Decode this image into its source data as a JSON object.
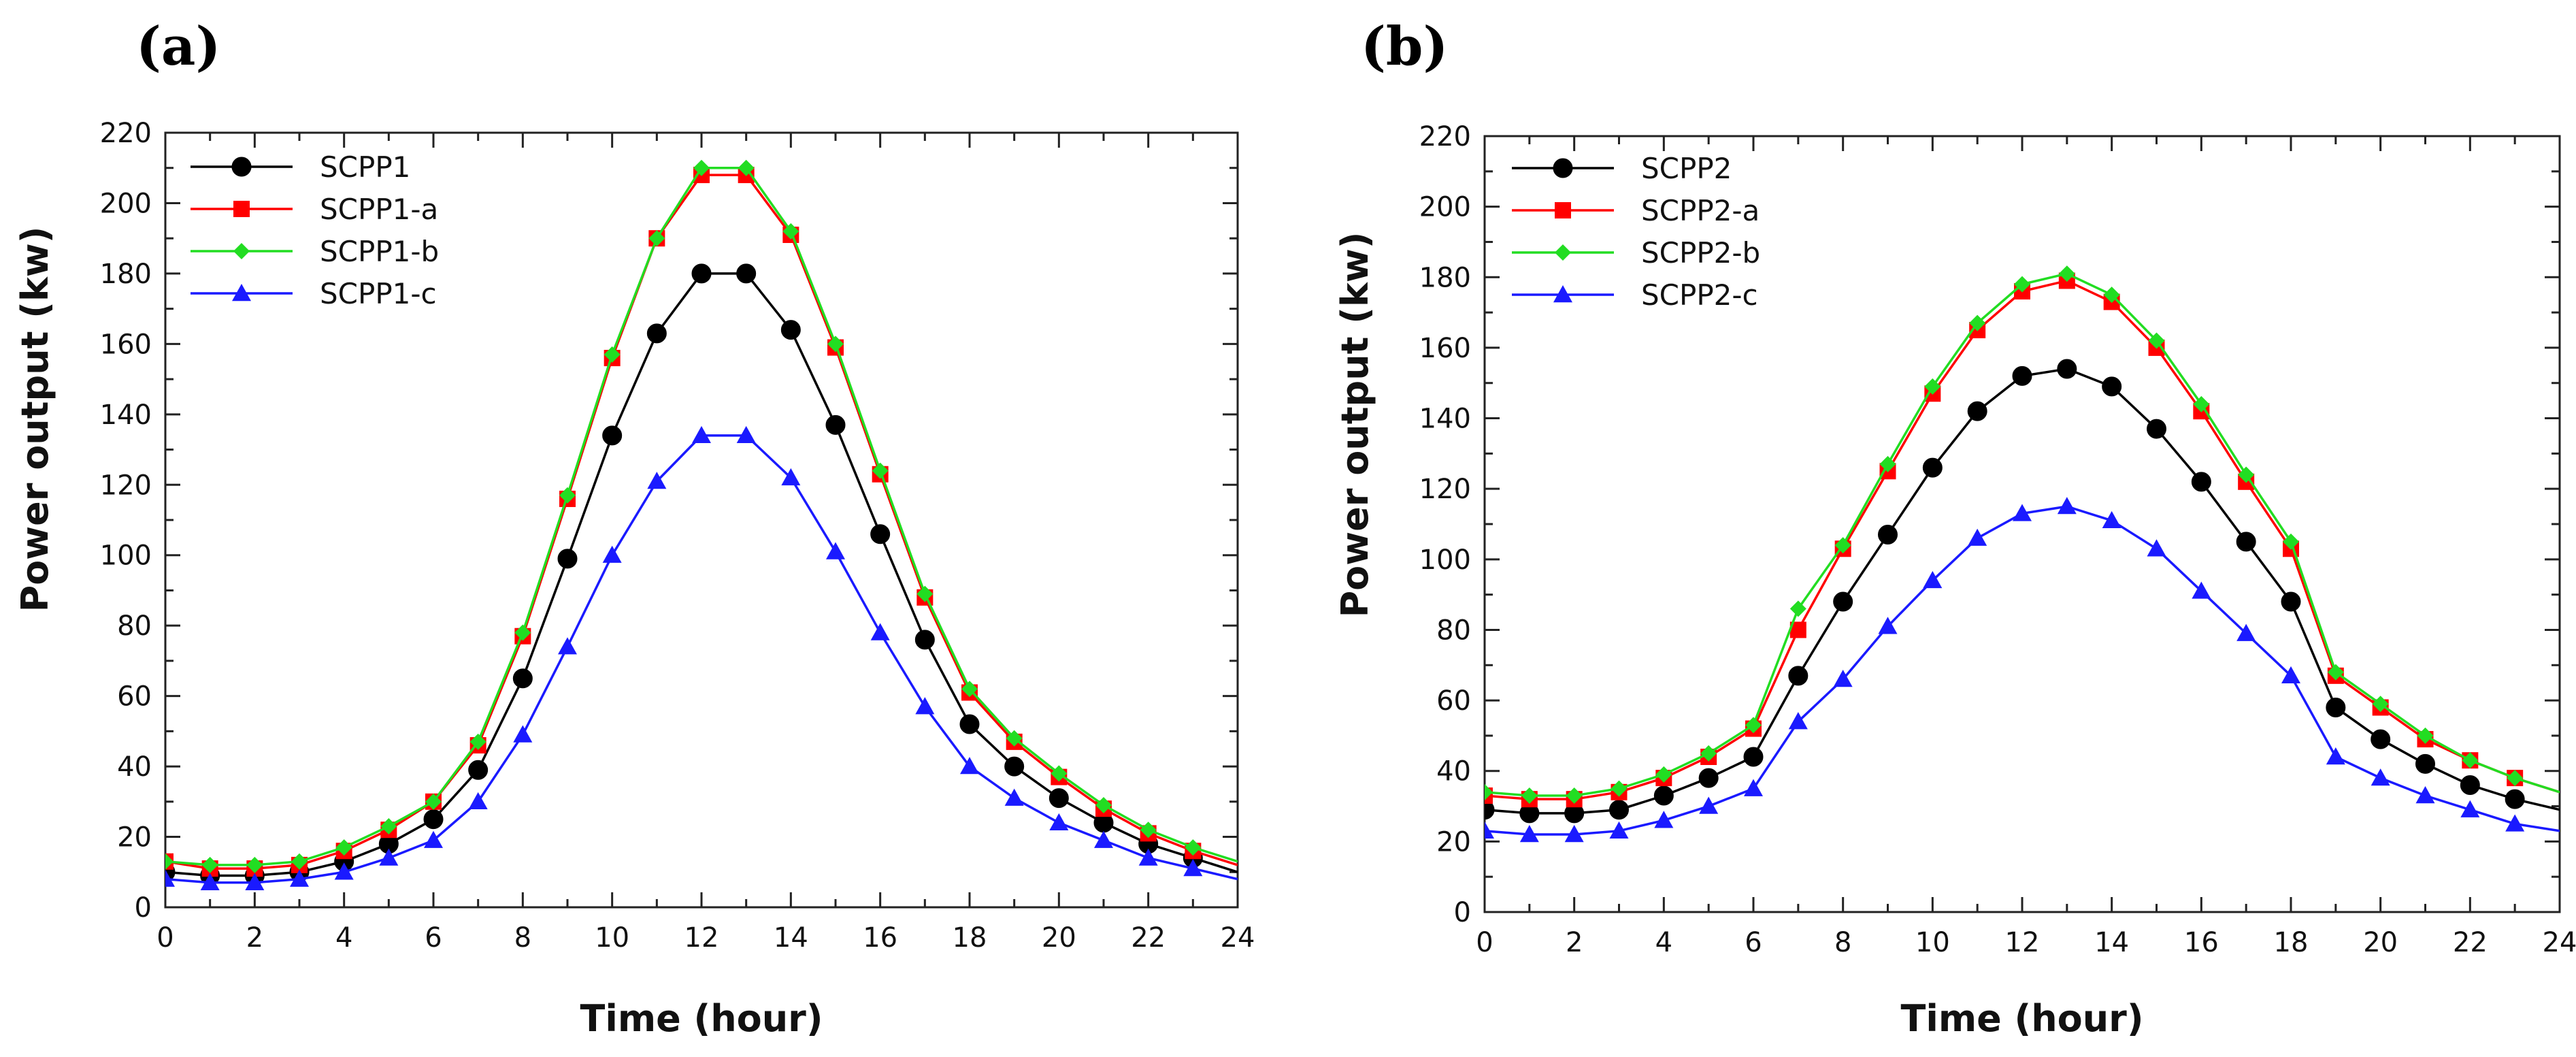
{
  "chart_data": [
    {
      "type": "line",
      "panel_label": "(a)",
      "title": "",
      "xlabel": "Time (hour)",
      "ylabel": "Power output (kw)",
      "xlim": [
        0,
        24
      ],
      "ylim": [
        0,
        220
      ],
      "xticks": [
        "0",
        "2",
        "4",
        "6",
        "8",
        "10",
        "12",
        "14",
        "16",
        "18",
        "20",
        "22",
        "24"
      ],
      "yticks": [
        "0",
        "20",
        "40",
        "60",
        "80",
        "100",
        "120",
        "140",
        "160",
        "180",
        "200",
        "220"
      ],
      "grid": false,
      "legend_position": "top-left",
      "x": [
        0,
        1,
        2,
        3,
        4,
        5,
        6,
        7,
        8,
        9,
        10,
        11,
        12,
        13,
        14,
        15,
        16,
        17,
        18,
        19,
        20,
        21,
        22,
        23,
        24
      ],
      "series": [
        {
          "name": "SCPP1",
          "color": "#000000",
          "marker": "circle",
          "values": [
            10,
            9,
            9,
            10,
            13,
            18,
            25,
            39,
            65,
            99,
            134,
            163,
            180,
            180,
            164,
            137,
            106,
            76,
            52,
            40,
            31,
            24,
            18,
            14,
            10
          ]
        },
        {
          "name": "SCPP1-a",
          "color": "#ff0000",
          "marker": "square",
          "values": [
            13,
            11,
            11,
            12,
            16,
            22,
            30,
            46,
            77,
            116,
            156,
            190,
            208,
            208,
            191,
            159,
            123,
            88,
            61,
            47,
            37,
            28,
            21,
            16,
            12
          ]
        },
        {
          "name": "SCPP1-b",
          "color": "#22dd22",
          "marker": "diamond",
          "values": [
            13,
            12,
            12,
            13,
            17,
            23,
            30,
            47,
            78,
            117,
            157,
            190,
            210,
            210,
            192,
            160,
            124,
            89,
            62,
            48,
            38,
            29,
            22,
            17,
            13
          ]
        },
        {
          "name": "SCPP1-c",
          "color": "#1a1aff",
          "marker": "triangle",
          "values": [
            8,
            7,
            7,
            8,
            10,
            14,
            19,
            30,
            49,
            74,
            100,
            121,
            134,
            134,
            122,
            101,
            78,
            57,
            40,
            31,
            24,
            19,
            14,
            11,
            8
          ]
        }
      ]
    },
    {
      "type": "line",
      "panel_label": "(b)",
      "title": "",
      "xlabel": "Time (hour)",
      "ylabel": "Power output (kw)",
      "xlim": [
        0,
        24
      ],
      "ylim": [
        0,
        220
      ],
      "xticks": [
        "0",
        "2",
        "4",
        "6",
        "8",
        "10",
        "12",
        "14",
        "16",
        "18",
        "20",
        "22",
        "24"
      ],
      "yticks": [
        "0",
        "20",
        "40",
        "60",
        "80",
        "100",
        "120",
        "140",
        "160",
        "180",
        "200",
        "220"
      ],
      "grid": false,
      "legend_position": "top-left",
      "x": [
        0,
        1,
        2,
        3,
        4,
        5,
        6,
        7,
        8,
        9,
        10,
        11,
        12,
        13,
        14,
        15,
        16,
        17,
        18,
        19,
        20,
        21,
        22,
        23,
        24
      ],
      "series": [
        {
          "name": "SCPP2",
          "color": "#000000",
          "marker": "circle",
          "values": [
            29,
            28,
            28,
            29,
            33,
            38,
            44,
            67,
            88,
            107,
            126,
            142,
            152,
            154,
            149,
            137,
            122,
            105,
            88,
            58,
            49,
            42,
            36,
            32,
            29
          ]
        },
        {
          "name": "SCPP2-a",
          "color": "#ff0000",
          "marker": "square",
          "values": [
            33,
            32,
            32,
            34,
            38,
            44,
            52,
            80,
            103,
            125,
            147,
            165,
            176,
            179,
            173,
            160,
            142,
            122,
            103,
            67,
            58,
            49,
            43,
            38,
            34
          ]
        },
        {
          "name": "SCPP2-b",
          "color": "#22dd22",
          "marker": "diamond",
          "values": [
            34,
            33,
            33,
            35,
            39,
            45,
            53,
            86,
            104,
            127,
            149,
            167,
            178,
            181,
            175,
            162,
            144,
            124,
            105,
            68,
            59,
            50,
            43,
            38,
            34
          ]
        },
        {
          "name": "SCPP2-c",
          "color": "#1a1aff",
          "marker": "triangle",
          "values": [
            23,
            22,
            22,
            23,
            26,
            30,
            35,
            54,
            66,
            81,
            94,
            106,
            113,
            115,
            111,
            103,
            91,
            79,
            67,
            44,
            38,
            33,
            29,
            25,
            23
          ]
        }
      ]
    }
  ]
}
